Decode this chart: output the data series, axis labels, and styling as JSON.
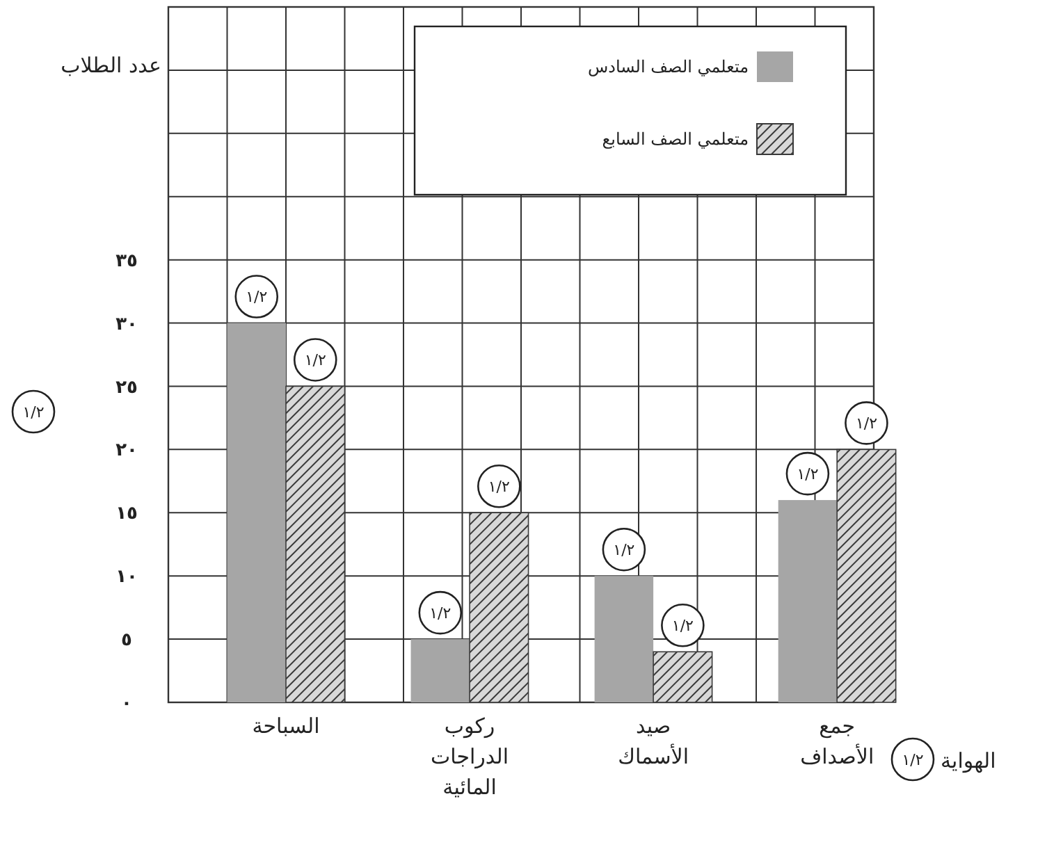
{
  "chart_data": {
    "type": "bar",
    "ylabel": "عدد الطلاب",
    "xlabel": "الهواية",
    "categories": [
      "السباحة",
      "ركوب الدراجات المائية",
      "صيد الأسماك",
      "جمع الأصداف"
    ],
    "series": [
      {
        "name": "متعلمي الصف السادس",
        "color": "#a6a6a6",
        "values": [
          30,
          5,
          10,
          16
        ]
      },
      {
        "name": "متعلمي الصف السابع",
        "color": "#3a3a3a",
        "values": [
          25,
          15,
          4,
          20
        ]
      }
    ],
    "ylim": [
      0,
      55
    ],
    "yticks": [
      {
        "value": 0,
        "label": "٠"
      },
      {
        "value": 5,
        "label": "٥"
      },
      {
        "value": 10,
        "label": "١٠"
      },
      {
        "value": 15,
        "label": "١٥"
      },
      {
        "value": 20,
        "label": "٢٠"
      },
      {
        "value": 25,
        "label": "٢٥"
      },
      {
        "value": 30,
        "label": "٣٠"
      },
      {
        "value": 35,
        "label": "٣٥"
      },
      {
        "value": 40,
        "label": null
      },
      {
        "value": 45,
        "label": null
      },
      {
        "value": 50,
        "label": null
      },
      {
        "value": 55,
        "label": null
      }
    ],
    "grid": true,
    "legend": "top right",
    "annotations": [
      "١/٢",
      "١/٢",
      {
        "text": "١/٢",
        "x": "السباحة",
        "y": 30
      },
      {
        "text": "١/٢",
        "x": "السباحة",
        "y": 25
      },
      {
        "text": "١/٢",
        "x": "ركوب الدراجات المائية",
        "y": 5
      },
      {
        "text": "١/٢",
        "x": "ركوب الدراجات المائية",
        "y": 15
      },
      {
        "text": "١/٢",
        "x": "صيد الأسماك",
        "y": 10
      },
      {
        "text": "١/٢",
        "x": "صيد الأسماك",
        "y": 4
      },
      {
        "text": "١/٢",
        "x": "جمع الأصداف",
        "y": 16
      },
      {
        "text": "١/٢",
        "x": "جمع الأصداف",
        "y": 20
      }
    ]
  }
}
